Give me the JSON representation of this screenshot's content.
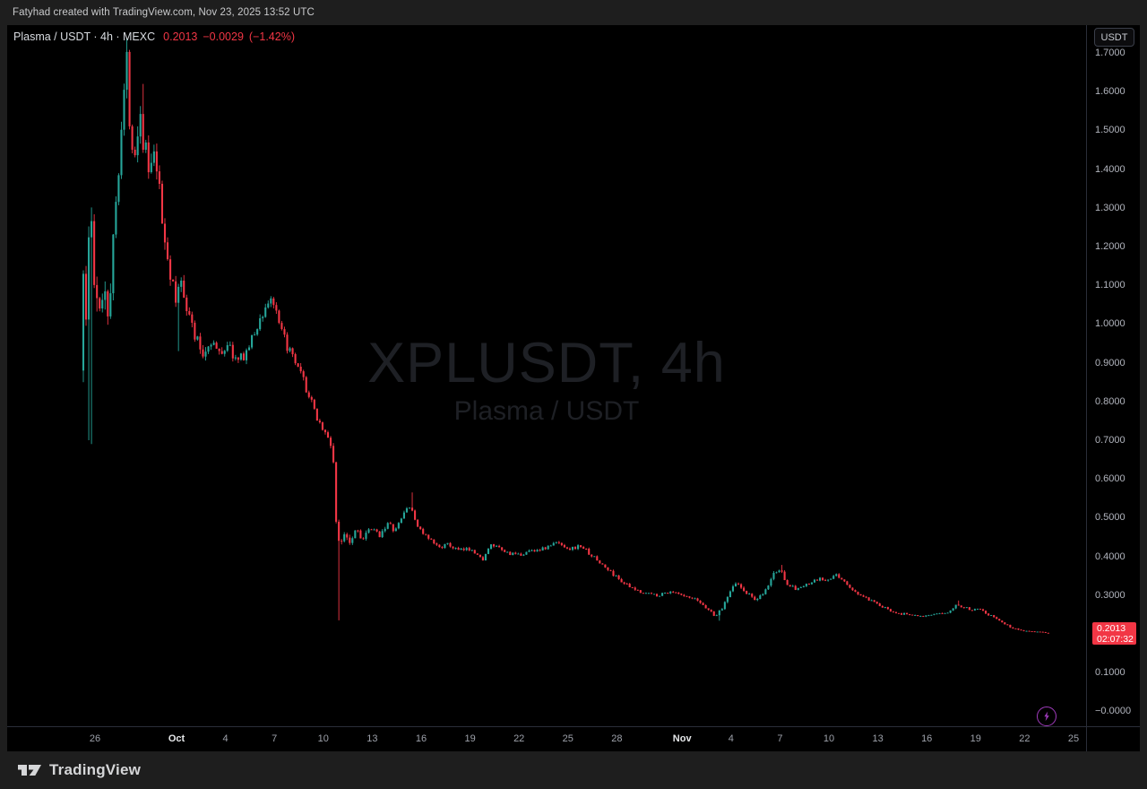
{
  "attribution": {
    "text": "Fatyhad created with TradingView.com, Nov 23, 2025 13:52 UTC"
  },
  "quote_header": {
    "symbol_line": "Plasma / USDT · 4h · MEXC",
    "price": "0.2013",
    "change": "−0.0029",
    "change_pct": "(−1.42%)"
  },
  "watermark": {
    "line1": "XPLUSDT, 4h",
    "line2": "Plasma / USDT"
  },
  "price_axis": {
    "currency_button": "USDT",
    "label": {
      "price": "0.2013",
      "countdown": "02:07:32"
    }
  },
  "time_axis": {
    "labels": [
      {
        "t": "26",
        "d": 0
      },
      {
        "t": "Oct",
        "d": 5,
        "m": true
      },
      {
        "t": "4",
        "d": 8
      },
      {
        "t": "7",
        "d": 11
      },
      {
        "t": "10",
        "d": 14
      },
      {
        "t": "13",
        "d": 17
      },
      {
        "t": "16",
        "d": 20
      },
      {
        "t": "19",
        "d": 23
      },
      {
        "t": "22",
        "d": 26
      },
      {
        "t": "25",
        "d": 29
      },
      {
        "t": "28",
        "d": 32
      },
      {
        "t": "Nov",
        "d": 36,
        "m": true
      },
      {
        "t": "4",
        "d": 39
      },
      {
        "t": "7",
        "d": 42
      },
      {
        "t": "10",
        "d": 45
      },
      {
        "t": "13",
        "d": 48
      },
      {
        "t": "16",
        "d": 51
      },
      {
        "t": "19",
        "d": 54
      },
      {
        "t": "22",
        "d": 57
      },
      {
        "t": "25",
        "d": 60
      }
    ]
  },
  "footer": {
    "brand": "TradingView"
  },
  "colors": {
    "up": "#26a69a",
    "down": "#f23645",
    "badge": "#f23645",
    "axis_text": "#b2b5be",
    "divider": "#2a2e39",
    "lightning": "#a03bbd"
  },
  "chart_data": {
    "type": "candlestick",
    "title": "XPLUSDT, 4h",
    "subtitle": "Plasma / USDT",
    "symbol": "XPLUSDT",
    "pair_name": "Plasma / USDT",
    "interval": "4h",
    "exchange": "MEXC",
    "last_price": 0.2013,
    "change": -0.0029,
    "change_pct": -1.42,
    "countdown": "02:07:32",
    "ylim": [
      -0.05,
      1.77
    ],
    "x_range": [
      "Sep 25",
      "Nov 25"
    ],
    "grid": false,
    "legend_position": "none",
    "y_ticks": [
      {
        "v": 1.7,
        "s": "1.7000"
      },
      {
        "v": 1.6,
        "s": "1.6000"
      },
      {
        "v": 1.5,
        "s": "1.5000"
      },
      {
        "v": 1.4,
        "s": "1.4000"
      },
      {
        "v": 1.3,
        "s": "1.3000"
      },
      {
        "v": 1.2,
        "s": "1.2000"
      },
      {
        "v": 1.1,
        "s": "1.1000"
      },
      {
        "v": 1.0,
        "s": "1.0000"
      },
      {
        "v": 0.9,
        "s": "0.9000"
      },
      {
        "v": 0.8,
        "s": "0.8000"
      },
      {
        "v": 0.7,
        "s": "0.7000"
      },
      {
        "v": 0.6,
        "s": "0.6000"
      },
      {
        "v": 0.5,
        "s": "0.5000"
      },
      {
        "v": 0.4,
        "s": "0.4000"
      },
      {
        "v": 0.3,
        "s": "0.3000"
      },
      {
        "v": 0.2,
        "s": "0.2000"
      },
      {
        "v": 0.1,
        "s": "0.1000"
      },
      {
        "v": 0.0,
        "s": "−0.0000"
      }
    ],
    "candles_per_day": 6,
    "days": 59.2,
    "price_path": [
      [
        0.0,
        0.88,
        0.06
      ],
      [
        0.17,
        1.18,
        0.06
      ],
      [
        0.33,
        0.99,
        0.06
      ],
      [
        0.5,
        1.22,
        0.06
      ],
      [
        0.67,
        1.26,
        0.05
      ],
      [
        0.85,
        1.09,
        0.05
      ],
      [
        1.1,
        1.0,
        0.05
      ],
      [
        1.4,
        1.12,
        0.045
      ],
      [
        1.7,
        1.04,
        0.045
      ],
      [
        2.0,
        1.2,
        0.04
      ],
      [
        2.3,
        1.42,
        0.035
      ],
      [
        2.6,
        1.57,
        0.03
      ],
      [
        2.84,
        1.67,
        0.028
      ],
      [
        3.0,
        1.55,
        0.035
      ],
      [
        3.3,
        1.44,
        0.035
      ],
      [
        3.6,
        1.56,
        0.03
      ],
      [
        3.9,
        1.47,
        0.03
      ],
      [
        4.2,
        1.38,
        0.028
      ],
      [
        4.6,
        1.43,
        0.025
      ],
      [
        5.0,
        1.26,
        0.025
      ],
      [
        5.4,
        1.16,
        0.025
      ],
      [
        5.8,
        1.05,
        0.028
      ],
      [
        6.2,
        1.12,
        0.025
      ],
      [
        6.6,
        1.03,
        0.022
      ],
      [
        7.0,
        0.97,
        0.02
      ],
      [
        7.5,
        0.92,
        0.02
      ],
      [
        8.0,
        0.96,
        0.018
      ],
      [
        8.5,
        0.92,
        0.018
      ],
      [
        9.0,
        0.95,
        0.016
      ],
      [
        9.6,
        0.9,
        0.016
      ],
      [
        10.2,
        0.93,
        0.015
      ],
      [
        10.8,
        0.99,
        0.015
      ],
      [
        11.4,
        1.05,
        0.015
      ],
      [
        11.75,
        1.07,
        0.015
      ],
      [
        12.1,
        1.0,
        0.015
      ],
      [
        12.6,
        0.95,
        0.015
      ],
      [
        13.1,
        0.9,
        0.015
      ],
      [
        13.6,
        0.86,
        0.015
      ],
      [
        14.1,
        0.8,
        0.015
      ],
      [
        14.6,
        0.75,
        0.015
      ],
      [
        15.1,
        0.71,
        0.015
      ],
      [
        15.4,
        0.68,
        0.015
      ],
      [
        15.55,
        0.63,
        0.03
      ],
      [
        15.7,
        0.45,
        0.035
      ],
      [
        15.9,
        0.42,
        0.03
      ],
      [
        16.2,
        0.47,
        0.025
      ],
      [
        16.5,
        0.44,
        0.022
      ],
      [
        16.9,
        0.475,
        0.02
      ],
      [
        17.3,
        0.445,
        0.02
      ],
      [
        17.8,
        0.47,
        0.018
      ],
      [
        18.3,
        0.455,
        0.016
      ],
      [
        18.8,
        0.485,
        0.016
      ],
      [
        19.3,
        0.465,
        0.015
      ],
      [
        19.8,
        0.51,
        0.015
      ],
      [
        20.1,
        0.535,
        0.015
      ],
      [
        20.45,
        0.5,
        0.015
      ],
      [
        20.8,
        0.47,
        0.014
      ],
      [
        21.3,
        0.445,
        0.013
      ],
      [
        21.9,
        0.425,
        0.012
      ],
      [
        22.5,
        0.43,
        0.011
      ],
      [
        23.2,
        0.415,
        0.011
      ],
      [
        24.0,
        0.42,
        0.011
      ],
      [
        24.6,
        0.39,
        0.013
      ],
      [
        25.2,
        0.43,
        0.011
      ],
      [
        26.0,
        0.412,
        0.011
      ],
      [
        26.8,
        0.402,
        0.011
      ],
      [
        27.6,
        0.415,
        0.011
      ],
      [
        28.4,
        0.42,
        0.011
      ],
      [
        29.2,
        0.436,
        0.011
      ],
      [
        30.0,
        0.42,
        0.011
      ],
      [
        30.7,
        0.427,
        0.011
      ],
      [
        31.4,
        0.4,
        0.012
      ],
      [
        32.2,
        0.37,
        0.013
      ],
      [
        33.0,
        0.342,
        0.013
      ],
      [
        33.8,
        0.316,
        0.013
      ],
      [
        34.6,
        0.306,
        0.012
      ],
      [
        35.4,
        0.3,
        0.012
      ],
      [
        36.2,
        0.31,
        0.011
      ],
      [
        37.0,
        0.296,
        0.011
      ],
      [
        37.8,
        0.287,
        0.013
      ],
      [
        38.4,
        0.266,
        0.016
      ],
      [
        38.9,
        0.247,
        0.018
      ],
      [
        39.3,
        0.262,
        0.018
      ],
      [
        39.7,
        0.302,
        0.02
      ],
      [
        40.1,
        0.336,
        0.02
      ],
      [
        40.5,
        0.317,
        0.016
      ],
      [
        41.0,
        0.3,
        0.015
      ],
      [
        41.5,
        0.286,
        0.016
      ],
      [
        42.0,
        0.312,
        0.018
      ],
      [
        42.5,
        0.356,
        0.018
      ],
      [
        42.9,
        0.366,
        0.016
      ],
      [
        43.3,
        0.332,
        0.015
      ],
      [
        43.8,
        0.316,
        0.013
      ],
      [
        44.3,
        0.322,
        0.012
      ],
      [
        44.8,
        0.332,
        0.012
      ],
      [
        45.3,
        0.342,
        0.012
      ],
      [
        45.8,
        0.336,
        0.012
      ],
      [
        46.3,
        0.352,
        0.012
      ],
      [
        46.7,
        0.342,
        0.012
      ],
      [
        47.2,
        0.316,
        0.012
      ],
      [
        47.8,
        0.3,
        0.012
      ],
      [
        48.4,
        0.286,
        0.012
      ],
      [
        49.0,
        0.272,
        0.011
      ],
      [
        49.6,
        0.262,
        0.011
      ],
      [
        50.2,
        0.252,
        0.01
      ],
      [
        51.0,
        0.25,
        0.009
      ],
      [
        51.8,
        0.246,
        0.009
      ],
      [
        52.6,
        0.251,
        0.009
      ],
      [
        53.2,
        0.257,
        0.01
      ],
      [
        53.7,
        0.276,
        0.012
      ],
      [
        54.1,
        0.27,
        0.01
      ],
      [
        54.6,
        0.262,
        0.01
      ],
      [
        55.1,
        0.268,
        0.01
      ],
      [
        55.6,
        0.251,
        0.01
      ],
      [
        56.1,
        0.241,
        0.01
      ],
      [
        56.6,
        0.227,
        0.009
      ],
      [
        57.1,
        0.216,
        0.008
      ],
      [
        57.7,
        0.209,
        0.007
      ],
      [
        58.3,
        0.207,
        0.006
      ],
      [
        58.8,
        0.205,
        0.006
      ],
      [
        59.2,
        0.2013,
        0.005
      ]
    ],
    "spikes": [
      {
        "t": 0.25,
        "low": 0.7
      },
      {
        "t": 0.42,
        "low": 0.69
      },
      {
        "t": 2.84,
        "high": 1.705
      },
      {
        "t": 3.62,
        "high": 1.62
      },
      {
        "t": 5.88,
        "low": 0.93
      },
      {
        "t": 15.62,
        "low": 0.235
      },
      {
        "t": 20.12,
        "high": 0.565
      },
      {
        "t": 38.92,
        "low": 0.234
      },
      {
        "t": 42.88,
        "high": 0.378
      },
      {
        "t": 53.72,
        "high": 0.286
      }
    ]
  }
}
